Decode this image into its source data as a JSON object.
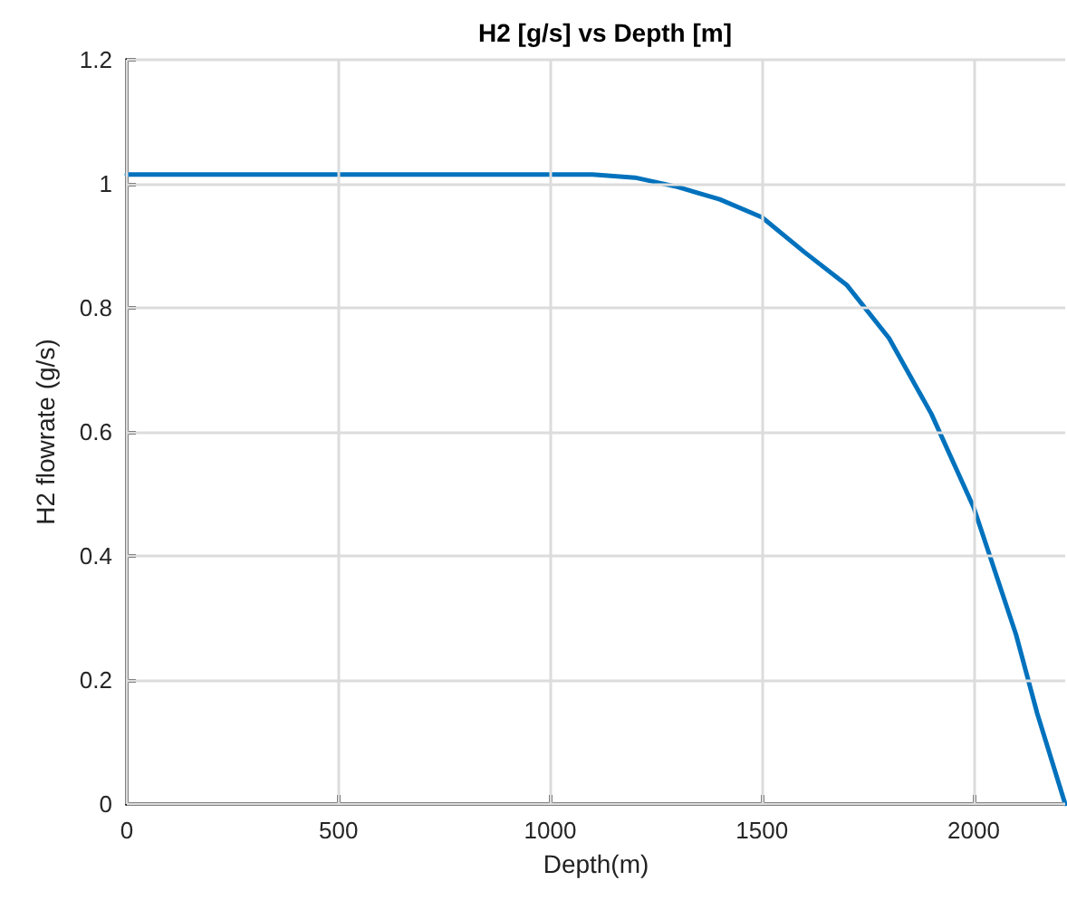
{
  "chart_data": {
    "type": "line",
    "title": "H2 [g/s] vs Depth [m]",
    "xlabel": "Depth(m)",
    "ylabel": "H2 flowrate (g/s)",
    "series": [
      {
        "color": "#0072bd",
        "x": [
          0,
          500,
          1000,
          1100,
          1200,
          1300,
          1400,
          1500,
          1600,
          1700,
          1800,
          1900,
          2000,
          2100,
          2150,
          2216
        ],
        "values": [
          1.015,
          1.015,
          1.015,
          1.015,
          1.01,
          0.995,
          0.975,
          0.946,
          0.89,
          0.837,
          0.751,
          0.629,
          0.478,
          0.273,
          0.146,
          0
        ]
      }
    ],
    "xlim": [
      0,
      2216
    ],
    "xticks": [
      0,
      500,
      1000,
      1500,
      2000
    ],
    "ylim": [
      0,
      1.2
    ],
    "yticks": [
      0,
      0.2,
      0.4,
      0.6,
      0.8,
      1,
      1.2
    ],
    "grid": true,
    "marker": "none",
    "line_style": "solid"
  }
}
